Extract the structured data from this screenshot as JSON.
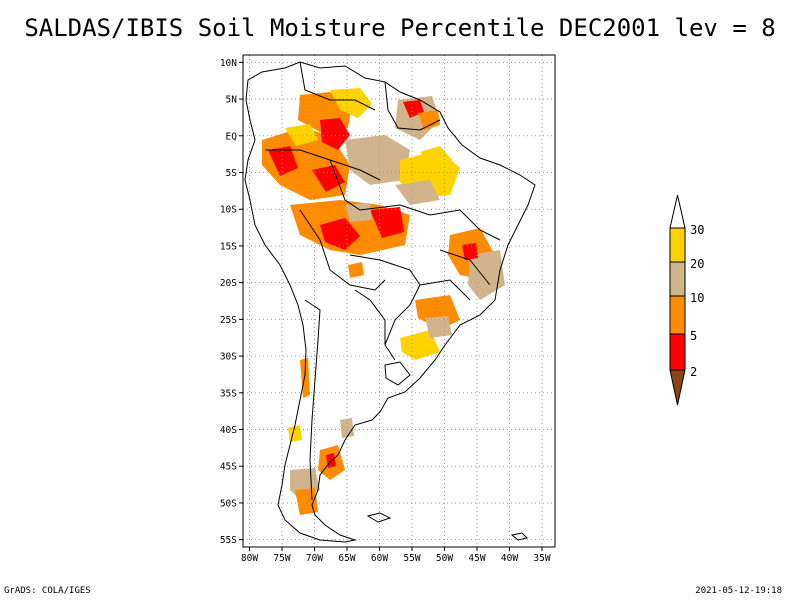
{
  "title": "SALDAS/IBIS Soil Moisture Percentile DEC2001 lev = 8",
  "footer": {
    "left": "GrADS: COLA/IGES",
    "right": "2021-05-12-19:18"
  },
  "axes": {
    "lat_labels": [
      "10N",
      "5N",
      "EQ",
      "5S",
      "10S",
      "15S",
      "20S",
      "25S",
      "30S",
      "35S",
      "40S",
      "45S",
      "50S",
      "55S"
    ],
    "lon_labels": [
      "80W",
      "75W",
      "70W",
      "65W",
      "60W",
      "55W",
      "50W",
      "45W",
      "40W",
      "35W"
    ],
    "lat_values": [
      10,
      5,
      0,
      -5,
      -10,
      -15,
      -20,
      -25,
      -30,
      -35,
      -40,
      -45,
      -50,
      -55
    ],
    "lon_values": [
      -80,
      -75,
      -70,
      -65,
      -60,
      -55,
      -50,
      -45,
      -40,
      -35
    ],
    "lon_range": [
      -81,
      -33
    ],
    "lat_range": [
      -56,
      11
    ]
  },
  "legend": {
    "labels": [
      "30",
      "20",
      "10",
      "5",
      "2"
    ],
    "colors": {
      "above30": "#ffffff",
      "20-30": "#ffd200",
      "10-20": "#d2b48c",
      "5-10": "#ff8c00",
      "2-5": "#ff0000",
      "below2": "#8b4513"
    }
  },
  "colors": {
    "frame": "#000000",
    "grid": "#9a9a9a",
    "coast": "#000000"
  }
}
